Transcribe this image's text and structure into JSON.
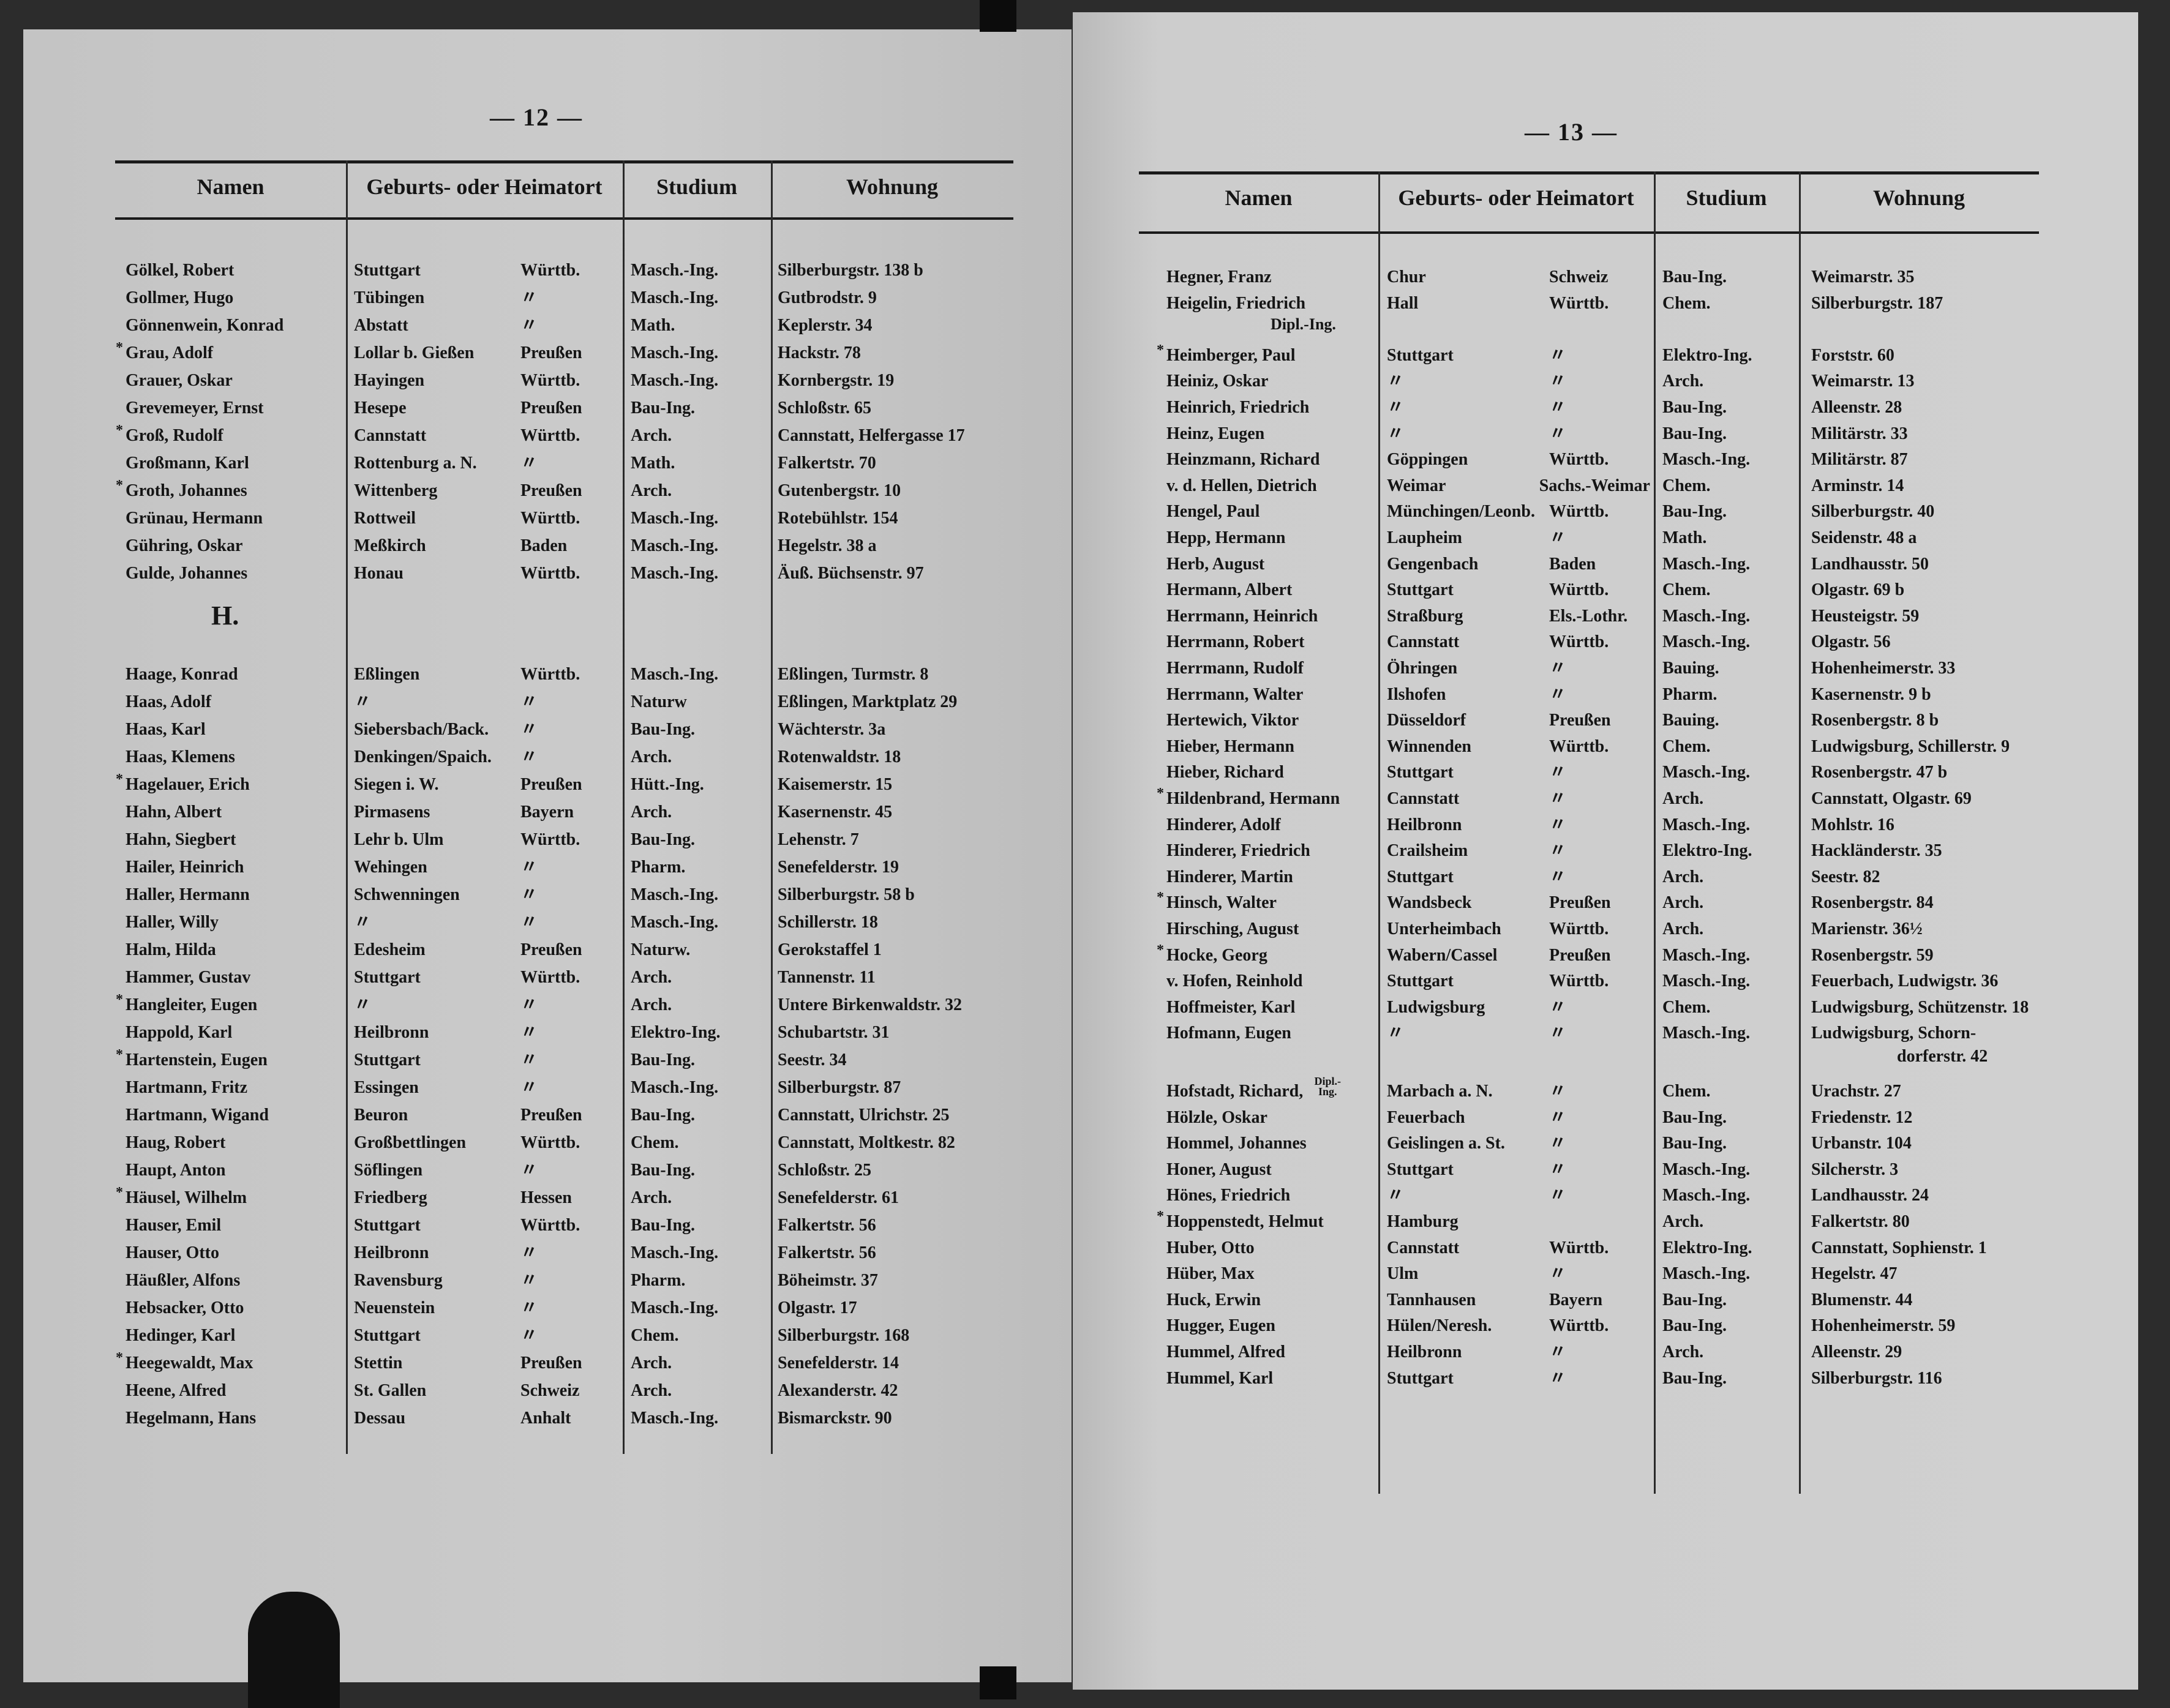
{
  "left_page": {
    "page_number": "— 12 —",
    "headers": [
      "Namen",
      "Geburts- oder Heimatort",
      "Studium",
      "Wohnung"
    ],
    "groups": [
      {
        "letter": "",
        "rows": [
          {
            "star": false,
            "name": "Gölkel, Robert",
            "place": "Stuttgart",
            "region": "Württb.",
            "study": "Masch.-Ing.",
            "address": "Silberburgstr. 138 b"
          },
          {
            "star": false,
            "name": "Gollmer, Hugo",
            "place": "Tübingen",
            "region": "〃",
            "study": "Masch.-Ing.",
            "address": "Gutbrodstr. 9"
          },
          {
            "star": false,
            "name": "Gönnenwein, Konrad",
            "place": "Abstatt",
            "region": "〃",
            "study": "Math.",
            "address": "Keplerstr. 34"
          },
          {
            "star": true,
            "name": "Grau, Adolf",
            "place": "Lollar b. Gießen",
            "region": "Preußen",
            "study": "Masch.-Ing.",
            "address": "Hackstr. 78"
          },
          {
            "star": false,
            "name": "Grauer, Oskar",
            "place": "Hayingen",
            "region": "Württb.",
            "study": "Masch.-Ing.",
            "address": "Kornbergstr. 19"
          },
          {
            "star": false,
            "name": "Grevemeyer, Ernst",
            "place": "Hesepe",
            "region": "Preußen",
            "study": "Bau-Ing.",
            "address": "Schloßstr. 65"
          },
          {
            "star": true,
            "name": "Groß, Rudolf",
            "place": "Cannstatt",
            "region": "Württb.",
            "study": "Arch.",
            "address": "Cannstatt, Helfergasse 17"
          },
          {
            "star": false,
            "name": "Großmann, Karl",
            "place": "Rottenburg a. N.",
            "region": "〃",
            "study": "Math.",
            "address": "Falkertstr. 70"
          },
          {
            "star": true,
            "name": "Groth, Johannes",
            "place": "Wittenberg",
            "region": "Preußen",
            "study": "Arch.",
            "address": "Gutenbergstr. 10"
          },
          {
            "star": false,
            "name": "Grünau, Hermann",
            "place": "Rottweil",
            "region": "Württb.",
            "study": "Masch.-Ing.",
            "address": "Rotebühlstr. 154"
          },
          {
            "star": false,
            "name": "Gühring, Oskar",
            "place": "Meßkirch",
            "region": "Baden",
            "study": "Masch.-Ing.",
            "address": "Hegelstr. 38 a"
          },
          {
            "star": false,
            "name": "Gulde, Johannes",
            "place": "Honau",
            "region": "Württb.",
            "study": "Masch.-Ing.",
            "address": "Äuß. Büchsenstr. 97"
          }
        ]
      },
      {
        "letter": "H.",
        "rows": [
          {
            "star": false,
            "name": "Haage, Konrad",
            "place": "Eßlingen",
            "region": "Württb.",
            "study": "Masch.-Ing.",
            "address": "Eßlingen, Turmstr. 8"
          },
          {
            "star": false,
            "name": "Haas, Adolf",
            "place": "〃",
            "region": "〃",
            "study": "Naturw",
            "address": "Eßlingen, Marktplatz 29"
          },
          {
            "star": false,
            "name": "Haas, Karl",
            "place": "Siebersbach/Back.",
            "region": "〃",
            "study": "Bau-Ing.",
            "address": "Wächterstr. 3a"
          },
          {
            "star": false,
            "name": "Haas, Klemens",
            "place": "Denkingen/Spaich.",
            "region": "〃",
            "study": "Arch.",
            "address": "Rotenwaldstr. 18"
          },
          {
            "star": true,
            "name": "Hagelauer, Erich",
            "place": "Siegen i. W.",
            "region": "Preußen",
            "study": "Hütt.-Ing.",
            "address": "Kaisemerstr. 15"
          },
          {
            "star": false,
            "name": "Hahn, Albert",
            "place": "Pirmasens",
            "region": "Bayern",
            "study": "Arch.",
            "address": "Kasernenstr. 45"
          },
          {
            "star": false,
            "name": "Hahn, Siegbert",
            "place": "Lehr b. Ulm",
            "region": "Württb.",
            "study": "Bau-Ing.",
            "address": "Lehenstr. 7"
          },
          {
            "star": false,
            "name": "Hailer, Heinrich",
            "place": "Wehingen",
            "region": "〃",
            "study": "Pharm.",
            "address": "Senefelderstr. 19"
          },
          {
            "star": false,
            "name": "Haller, Hermann",
            "place": "Schwenningen",
            "region": "〃",
            "study": "Masch.-Ing.",
            "address": "Silberburgstr. 58 b"
          },
          {
            "star": false,
            "name": "Haller, Willy",
            "place": "〃",
            "region": "〃",
            "study": "Masch.-Ing.",
            "address": "Schillerstr. 18"
          },
          {
            "star": false,
            "name": "Halm, Hilda",
            "place": "Edesheim",
            "region": "Preußen",
            "study": "Naturw.",
            "address": "Gerokstaffel 1"
          },
          {
            "star": false,
            "name": "Hammer, Gustav",
            "place": "Stuttgart",
            "region": "Württb.",
            "study": "Arch.",
            "address": "Tannenstr. 11"
          },
          {
            "star": true,
            "name": "Hangleiter, Eugen",
            "place": "〃",
            "region": "〃",
            "study": "Arch.",
            "address": "Untere Birkenwaldstr. 32"
          },
          {
            "star": false,
            "name": "Happold, Karl",
            "place": "Heilbronn",
            "region": "〃",
            "study": "Elektro-Ing.",
            "address": "Schubartstr. 31"
          },
          {
            "star": true,
            "name": "Hartenstein, Eugen",
            "place": "Stuttgart",
            "region": "〃",
            "study": "Bau-Ing.",
            "address": "Seestr. 34"
          },
          {
            "star": false,
            "name": "Hartmann, Fritz",
            "place": "Essingen",
            "region": "〃",
            "study": "Masch.-Ing.",
            "address": "Silberburgstr. 87"
          },
          {
            "star": false,
            "name": "Hartmann, Wigand",
            "place": "Beuron",
            "region": "Preußen",
            "study": "Bau-Ing.",
            "address": "Cannstatt, Ulrichstr. 25"
          },
          {
            "star": false,
            "name": "Haug, Robert",
            "place": "Großbettlingen",
            "region": "Württb.",
            "study": "Chem.",
            "address": "Cannstatt, Moltkestr. 82"
          },
          {
            "star": false,
            "name": "Haupt, Anton",
            "place": "Söflingen",
            "region": "〃",
            "study": "Bau-Ing.",
            "address": "Schloßstr. 25"
          },
          {
            "star": true,
            "name": "Häusel, Wilhelm",
            "place": "Friedberg",
            "region": "Hessen",
            "study": "Arch.",
            "address": "Senefelderstr. 61"
          },
          {
            "star": false,
            "name": "Hauser, Emil",
            "place": "Stuttgart",
            "region": "Württb.",
            "study": "Bau-Ing.",
            "address": "Falkertstr. 56"
          },
          {
            "star": false,
            "name": "Hauser, Otto",
            "place": "Heilbronn",
            "region": "〃",
            "study": "Masch.-Ing.",
            "address": "Falkertstr. 56"
          },
          {
            "star": false,
            "name": "Häußler, Alfons",
            "place": "Ravensburg",
            "region": "〃",
            "study": "Pharm.",
            "address": "Böheimstr. 37"
          },
          {
            "star": false,
            "name": "Hebsacker, Otto",
            "place": "Neuenstein",
            "region": "〃",
            "study": "Masch.-Ing.",
            "address": "Olgastr. 17"
          },
          {
            "star": false,
            "name": "Hedinger, Karl",
            "place": "Stuttgart",
            "region": "〃",
            "study": "Chem.",
            "address": "Silberburgstr. 168"
          },
          {
            "star": true,
            "name": "Heegewaldt, Max",
            "place": "Stettin",
            "region": "Preußen",
            "study": "Arch.",
            "address": "Senefelderstr. 14"
          },
          {
            "star": false,
            "name": "Heene, Alfred",
            "place": "St. Gallen",
            "region": "Schweiz",
            "study": "Arch.",
            "address": "Alexanderstr. 42"
          },
          {
            "star": false,
            "name": "Hegelmann, Hans",
            "place": "Dessau",
            "region": "Anhalt",
            "study": "Masch.-Ing.",
            "address": "Bismarckstr. 90"
          }
        ]
      }
    ]
  },
  "right_page": {
    "page_number": "— 13 —",
    "headers": [
      "Namen",
      "Geburts- oder Heimatort",
      "Studium",
      "Wohnung"
    ],
    "rows": [
      {
        "star": false,
        "name": "Hegner, Franz",
        "place": "Chur",
        "region": "Schweiz",
        "study": "Bau-Ing.",
        "address": "Weimarstr. 35"
      },
      {
        "star": false,
        "name": "Heigelin, Friedrich",
        "note": "Dipl.-Ing.",
        "note_style": "below",
        "place": "Hall",
        "region": "Württb.",
        "study": "Chem.",
        "address": "Silberburgstr. 187"
      },
      {
        "star": true,
        "name": "Heimberger, Paul",
        "place": "Stuttgart",
        "region": "〃",
        "study": "Elektro-Ing.",
        "address": "Forststr. 60"
      },
      {
        "star": false,
        "name": "Heiniz, Oskar",
        "place": "〃",
        "region": "〃",
        "study": "Arch.",
        "address": "Weimarstr. 13"
      },
      {
        "star": false,
        "name": "Heinrich, Friedrich",
        "place": "〃",
        "region": "〃",
        "study": "Bau-Ing.",
        "address": "Alleenstr. 28"
      },
      {
        "star": false,
        "name": "Heinz, Eugen",
        "place": "〃",
        "region": "〃",
        "study": "Bau-Ing.",
        "address": "Militärstr. 33"
      },
      {
        "star": false,
        "name": "Heinzmann, Richard",
        "place": "Göppingen",
        "region": "Württb.",
        "study": "Masch.-Ing.",
        "address": "Militärstr. 87"
      },
      {
        "star": false,
        "name": "v. d. Hellen, Dietrich",
        "place": "Weimar",
        "region": "Sachs.-Weimar",
        "study": "Chem.",
        "address": "Arminstr. 14"
      },
      {
        "star": false,
        "name": "Hengel, Paul",
        "place": "Münchingen/Leonb.",
        "region": "Württb.",
        "study": "Bau-Ing.",
        "address": "Silberburgstr. 40"
      },
      {
        "star": false,
        "name": "Hepp, Hermann",
        "place": "Laupheim",
        "region": "〃",
        "study": "Math.",
        "address": "Seidenstr. 48 a"
      },
      {
        "star": false,
        "name": "Herb, August",
        "place": "Gengenbach",
        "region": "Baden",
        "study": "Masch.-Ing.",
        "address": "Landhausstr. 50"
      },
      {
        "star": false,
        "name": "Hermann, Albert",
        "place": "Stuttgart",
        "region": "Württb.",
        "study": "Chem.",
        "address": "Olgastr. 69 b"
      },
      {
        "star": false,
        "name": "Herrmann, Heinrich",
        "place": "Straßburg",
        "region": "Els.-Lothr.",
        "study": "Masch.-Ing.",
        "address": "Heusteigstr. 59"
      },
      {
        "star": false,
        "name": "Herrmann, Robert",
        "place": "Cannstatt",
        "region": "Württb.",
        "study": "Masch.-Ing.",
        "address": "Olgastr. 56"
      },
      {
        "star": false,
        "name": "Herrmann, Rudolf",
        "place": "Öhringen",
        "region": "〃",
        "study": "Bauing.",
        "address": "Hohenheimerstr. 33"
      },
      {
        "star": false,
        "name": "Herrmann, Walter",
        "place": "Ilshofen",
        "region": "〃",
        "study": "Pharm.",
        "address": "Kasernenstr. 9 b"
      },
      {
        "star": false,
        "name": "Hertewich, Viktor",
        "place": "Düsseldorf",
        "region": "Preußen",
        "study": "Bauing.",
        "address": "Rosenbergstr. 8 b"
      },
      {
        "star": false,
        "name": "Hieber, Hermann",
        "place": "Winnenden",
        "region": "Württb.",
        "study": "Chem.",
        "address": "Ludwigsburg, Schillerstr. 9"
      },
      {
        "star": false,
        "name": "Hieber, Richard",
        "place": "Stuttgart",
        "region": "〃",
        "study": "Masch.-Ing.",
        "address": "Rosenbergstr. 47 b"
      },
      {
        "star": true,
        "name": "Hildenbrand, Hermann",
        "place": "Cannstatt",
        "region": "〃",
        "study": "Arch.",
        "address": "Cannstatt, Olgastr. 69"
      },
      {
        "star": false,
        "name": "Hinderer, Adolf",
        "place": "Heilbronn",
        "region": "〃",
        "study": "Masch.-Ing.",
        "address": "Mohlstr. 16"
      },
      {
        "star": false,
        "name": "Hinderer, Friedrich",
        "place": "Crailsheim",
        "region": "〃",
        "study": "Elektro-Ing.",
        "address": "Hackländerstr. 35"
      },
      {
        "star": false,
        "name": "Hinderer, Martin",
        "place": "Stuttgart",
        "region": "〃",
        "study": "Arch.",
        "address": "Seestr. 82"
      },
      {
        "star": true,
        "name": "Hinsch, Walter",
        "place": "Wandsbeck",
        "region": "Preußen",
        "study": "Arch.",
        "address": "Rosenbergstr. 84"
      },
      {
        "star": false,
        "name": "Hirsching, August",
        "place": "Unterheimbach",
        "region": "Württb.",
        "study": "Arch.",
        "address": "Marienstr. 36½"
      },
      {
        "star": true,
        "name": "Hocke, Georg",
        "place": "Wabern/Cassel",
        "region": "Preußen",
        "study": "Masch.-Ing.",
        "address": "Rosenbergstr. 59"
      },
      {
        "star": false,
        "name": "v. Hofen, Reinhold",
        "place": "Stuttgart",
        "region": "Württb.",
        "study": "Masch.-Ing.",
        "address": "Feuerbach, Ludwigstr. 36"
      },
      {
        "star": false,
        "name": "Hoffmeister, Karl",
        "place": "Ludwigsburg",
        "region": "〃",
        "study": "Chem.",
        "address": "Ludwigsburg, Schützenstr. 18"
      },
      {
        "star": false,
        "name": "Hofmann, Eugen",
        "place": "〃",
        "region": "〃",
        "study": "Masch.-Ing.",
        "address": "Ludwigsburg, Schorn-",
        "address2": "dorferstr. 42"
      },
      {
        "star": false,
        "name": "Hofstadt, Richard,",
        "note": "Dipl.-Ing.",
        "note_style": "super",
        "place": "Marbach a. N.",
        "region": "〃",
        "study": "Chem.",
        "address": "Urachstr. 27"
      },
      {
        "star": false,
        "name": "Hölzle, Oskar",
        "place": "Feuerbach",
        "region": "〃",
        "study": "Bau-Ing.",
        "address": "Friedenstr. 12"
      },
      {
        "star": false,
        "name": "Hommel, Johannes",
        "place": "Geislingen a. St.",
        "region": "〃",
        "study": "Bau-Ing.",
        "address": "Urbanstr. 104"
      },
      {
        "star": false,
        "name": "Honer, August",
        "place": "Stuttgart",
        "region": "〃",
        "study": "Masch.-Ing.",
        "address": "Silcherstr. 3"
      },
      {
        "star": false,
        "name": "Hönes, Friedrich",
        "place": "〃",
        "region": "〃",
        "study": "Masch.-Ing.",
        "address": "Landhausstr. 24"
      },
      {
        "star": true,
        "name": "Hoppenstedt, Helmut",
        "place": "Hamburg",
        "region": "",
        "study": "Arch.",
        "address": "Falkertstr. 80"
      },
      {
        "star": false,
        "name": "Huber, Otto",
        "place": "Cannstatt",
        "region": "Württb.",
        "study": "Elektro-Ing.",
        "address": "Cannstatt, Sophienstr. 1"
      },
      {
        "star": false,
        "name": "Hüber, Max",
        "place": "Ulm",
        "region": "〃",
        "study": "Masch.-Ing.",
        "address": "Hegelstr. 47"
      },
      {
        "star": false,
        "name": "Huck, Erwin",
        "place": "Tannhausen",
        "region": "Bayern",
        "study": "Bau-Ing.",
        "address": "Blumenstr. 44"
      },
      {
        "star": false,
        "name": "Hugger, Eugen",
        "place": "Hülen/Neresh.",
        "region": "Württb.",
        "study": "Bau-Ing.",
        "address": "Hohenheimerstr. 59"
      },
      {
        "star": false,
        "name": "Hummel, Alfred",
        "place": "Heilbronn",
        "region": "〃",
        "study": "Arch.",
        "address": "Alleenstr. 29"
      },
      {
        "star": false,
        "name": "Hummel, Karl",
        "place": "Stuttgart",
        "region": "〃",
        "study": "Bau-Ing.",
        "address": "Silberburgstr. 116"
      }
    ]
  }
}
